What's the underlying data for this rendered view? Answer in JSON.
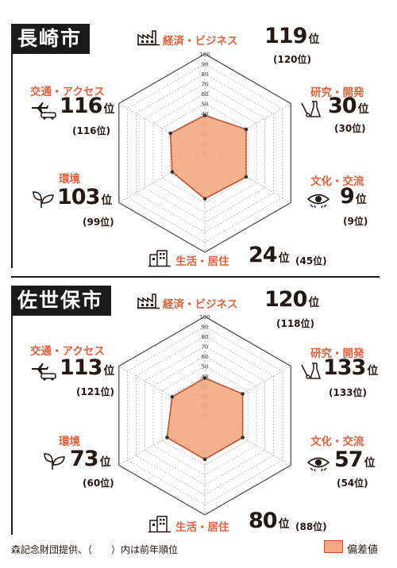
{
  "chart_data": [
    {
      "type": "radar",
      "city": "長崎市",
      "axes": [
        "経済・ビジネス",
        "研究・開発",
        "文化・交流",
        "生活・居住",
        "環境",
        "交通・アクセス"
      ],
      "ticks": [
        "100",
        "90",
        "80",
        "70",
        "60",
        "50",
        "40",
        "30",
        "20",
        "10",
        "0"
      ],
      "rlim": [
        0,
        100
      ],
      "values": [
        38,
        48,
        48,
        46,
        38,
        40
      ],
      "ranks": [
        {
          "rank": "119",
          "unit": "位",
          "prev": "(120位)"
        },
        {
          "rank": "30",
          "unit": "位",
          "prev": "(30位)"
        },
        {
          "rank": "9",
          "unit": "位",
          "prev": "(9位)"
        },
        {
          "rank": "24",
          "unit": "位",
          "prev": "(45位)"
        },
        {
          "rank": "103",
          "unit": "位",
          "prev": "(99位)"
        },
        {
          "rank": "116",
          "unit": "位",
          "prev": "(116位)"
        }
      ]
    },
    {
      "type": "radar",
      "city": "佐世保市",
      "axes": [
        "経済・ビジネス",
        "研究・開発",
        "文化・交流",
        "生活・居住",
        "環境",
        "交通・アクセス"
      ],
      "ticks": [
        "100",
        "90",
        "80",
        "70",
        "60",
        "50",
        "40",
        "30",
        "20",
        "10",
        "0"
      ],
      "rlim": [
        0,
        100
      ],
      "values": [
        38,
        44,
        44,
        44,
        44,
        38
      ],
      "ranks": [
        {
          "rank": "120",
          "unit": "位",
          "prev": "(118位)"
        },
        {
          "rank": "133",
          "unit": "位",
          "prev": "(133位)"
        },
        {
          "rank": "57",
          "unit": "位",
          "prev": "(54位)"
        },
        {
          "rank": "80",
          "unit": "位",
          "prev": "(88位)"
        },
        {
          "rank": "73",
          "unit": "位",
          "prev": "(60位)"
        },
        {
          "rank": "113",
          "unit": "位",
          "prev": "(121位)"
        }
      ]
    }
  ],
  "footer": {
    "note": "森記念財団提供、（　　）内は前年順位",
    "legend": "偏差値"
  },
  "colors": {
    "fill": "#f4a782",
    "stroke": "#c8512c",
    "accent": "#e2603a",
    "grid": "#9e9e9e"
  }
}
